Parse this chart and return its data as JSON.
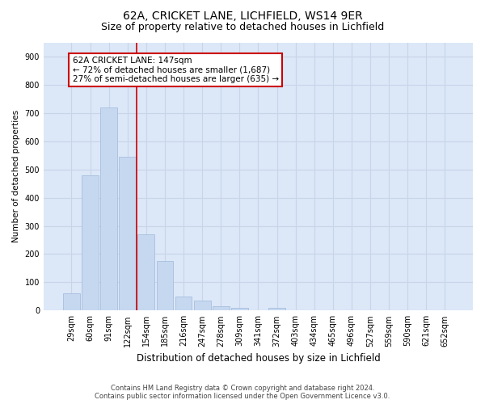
{
  "title1": "62A, CRICKET LANE, LICHFIELD, WS14 9ER",
  "title2": "Size of property relative to detached houses in Lichfield",
  "xlabel": "Distribution of detached houses by size in Lichfield",
  "ylabel": "Number of detached properties",
  "categories": [
    "29sqm",
    "60sqm",
    "91sqm",
    "122sqm",
    "154sqm",
    "185sqm",
    "216sqm",
    "247sqm",
    "278sqm",
    "309sqm",
    "341sqm",
    "372sqm",
    "403sqm",
    "434sqm",
    "465sqm",
    "496sqm",
    "527sqm",
    "559sqm",
    "590sqm",
    "621sqm",
    "652sqm"
  ],
  "values": [
    60,
    480,
    720,
    545,
    270,
    175,
    50,
    35,
    15,
    10,
    0,
    10,
    0,
    0,
    0,
    0,
    0,
    0,
    0,
    0,
    0
  ],
  "bar_color": "#c5d8f0",
  "bar_edge_color": "#a0b8d8",
  "bar_edge_width": 0.5,
  "red_line_index": 4,
  "red_line_color": "#cc0000",
  "annotation_text": "62A CRICKET LANE: 147sqm\n← 72% of detached houses are smaller (1,687)\n27% of semi-detached houses are larger (635) →",
  "annotation_box_color": "#ffffff",
  "annotation_box_edge_color": "#cc0000",
  "annotation_fontsize": 7.5,
  "ylim": [
    0,
    950
  ],
  "yticks": [
    0,
    100,
    200,
    300,
    400,
    500,
    600,
    700,
    800,
    900
  ],
  "grid_color": "#c8d4e8",
  "background_color": "#dce8f8",
  "fig_background_color": "#ffffff",
  "footer": "Contains HM Land Registry data © Crown copyright and database right 2024.\nContains public sector information licensed under the Open Government Licence v3.0.",
  "title1_fontsize": 10,
  "title2_fontsize": 9,
  "xlabel_fontsize": 8.5,
  "ylabel_fontsize": 7.5,
  "footer_fontsize": 6,
  "tick_fontsize": 7
}
